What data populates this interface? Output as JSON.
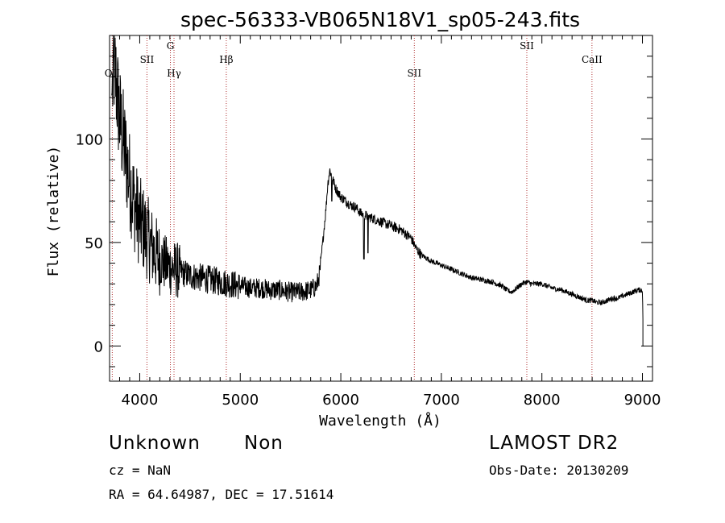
{
  "chart_data": {
    "type": "line",
    "title": "spec-56333-VB065N18V1_sp05-243.fits",
    "xlabel": "Wavelength (Å)",
    "ylabel": "Flux (relative)",
    "xlim": [
      3700,
      9100
    ],
    "ylim": [
      -17,
      150
    ],
    "x_ticks": [
      4000,
      5000,
      6000,
      7000,
      8000,
      9000
    ],
    "y_ticks": [
      0,
      50,
      100
    ],
    "grid": false,
    "line_color": "#000000",
    "marker_color": "#b03030",
    "spectral_lines": [
      {
        "label": "OII",
        "wavelength": 3727,
        "tier": 3
      },
      {
        "label": "SII",
        "wavelength": 4072,
        "tier": 2
      },
      {
        "label": "G",
        "wavelength": 4305,
        "tier": 1
      },
      {
        "label": "Hγ",
        "wavelength": 4341,
        "tier": 3
      },
      {
        "label": "Hβ",
        "wavelength": 4861,
        "tier": 2
      },
      {
        "label": "SII",
        "wavelength": 6731,
        "tier": 3
      },
      {
        "label": "SII",
        "wavelength": 7850,
        "tier": 1
      },
      {
        "label": "CaII",
        "wavelength": 8498,
        "tier": 2
      }
    ],
    "continuum": {
      "x": [
        3700,
        3720,
        3750,
        3800,
        3850,
        3900,
        3950,
        4000,
        4050,
        4100,
        4150,
        4200,
        4250,
        4300,
        4400,
        4500,
        4600,
        4700,
        4800,
        4900,
        5000,
        5100,
        5200,
        5300,
        5400,
        5500,
        5600,
        5700,
        5760,
        5790,
        5820,
        5850,
        5870,
        5890,
        5910,
        5950,
        6000,
        6050,
        6100,
        6150,
        6200,
        6250,
        6300,
        6350,
        6400,
        6450,
        6500,
        6550,
        6600,
        6650,
        6700,
        6750,
        6800,
        6900,
        7000,
        7100,
        7200,
        7300,
        7400,
        7500,
        7600,
        7650,
        7700,
        7750,
        7800,
        7850,
        7900,
        7950,
        8000,
        8100,
        8200,
        8300,
        8350,
        8400,
        8450,
        8500,
        8550,
        8600,
        8650,
        8700,
        8750,
        8800,
        8850,
        8900,
        8950,
        8990,
        9000,
        9010
      ],
      "y": [
        0,
        120,
        135,
        110,
        95,
        80,
        68,
        60,
        55,
        50,
        45,
        42,
        40,
        38,
        36,
        34,
        33,
        32,
        31,
        30,
        29,
        28,
        28,
        27,
        27,
        26,
        26,
        27,
        29,
        35,
        50,
        65,
        78,
        85,
        82,
        76,
        72,
        70,
        68,
        67,
        64,
        63,
        62,
        61,
        60,
        59,
        58,
        57,
        56,
        54,
        52,
        47,
        44,
        41,
        39,
        37,
        35,
        33,
        32,
        31,
        29,
        27,
        26,
        28,
        30,
        31,
        30,
        30,
        30,
        28,
        27,
        25,
        24,
        23,
        22,
        22,
        21,
        21,
        22,
        23,
        23,
        24,
        25,
        26,
        27,
        27,
        26,
        0
      ]
    },
    "dips": [
      {
        "x": 6230,
        "y": 42
      },
      {
        "x": 6270,
        "y": 45
      },
      {
        "x": 5910,
        "y": 70
      }
    ]
  },
  "info": {
    "class": "Unknown",
    "subclass": "Non",
    "survey": "LAMOST DR2",
    "cz": "cz = NaN",
    "obs_date": "Obs-Date: 20130209",
    "coords": "RA =  64.64987, DEC =  17.51614"
  }
}
